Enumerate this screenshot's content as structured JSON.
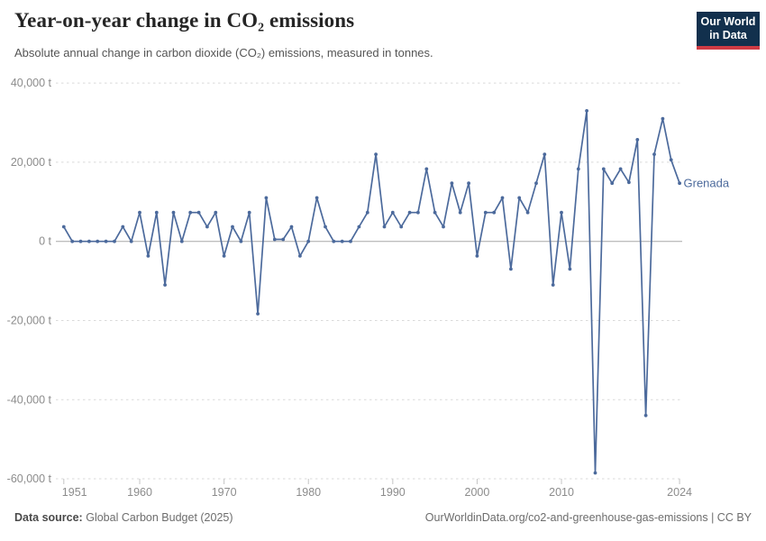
{
  "header": {
    "title": "Year-on-year change in CO₂ emissions",
    "subtitle": "Absolute annual change in carbon dioxide (CO₂) emissions, measured in tonnes.",
    "logo": {
      "line1": "Our World",
      "line2": "in Data"
    }
  },
  "chart_data": {
    "type": "line",
    "title": "Year-on-year change in CO₂ emissions",
    "subtitle": "Absolute annual change in carbon dioxide (CO₂) emissions, measured in tonnes.",
    "entity": "Grenada",
    "unit": "t",
    "grid": true,
    "legend_position": "end-of-line-label",
    "series_color": "#4c6a9c",
    "xlim": [
      1951,
      2024
    ],
    "ylim": [
      -60000,
      40000
    ],
    "x_ticks": [
      1951,
      1960,
      1970,
      1980,
      1990,
      2000,
      2010,
      2024
    ],
    "y_ticks": [
      {
        "value": 40000,
        "label": "40,000 t"
      },
      {
        "value": 20000,
        "label": "20,000 t"
      },
      {
        "value": 0,
        "label": "0 t"
      },
      {
        "value": -20000,
        "label": "-20,000 t"
      },
      {
        "value": -40000,
        "label": "-40,000 t"
      },
      {
        "value": -60000,
        "label": "-60,000 t"
      }
    ],
    "x": [
      1951,
      1952,
      1953,
      1954,
      1955,
      1956,
      1957,
      1958,
      1959,
      1960,
      1961,
      1962,
      1963,
      1964,
      1965,
      1966,
      1967,
      1968,
      1969,
      1970,
      1971,
      1972,
      1973,
      1974,
      1975,
      1976,
      1977,
      1978,
      1979,
      1980,
      1981,
      1982,
      1983,
      1984,
      1985,
      1986,
      1987,
      1988,
      1989,
      1990,
      1991,
      1992,
      1993,
      1994,
      1995,
      1996,
      1997,
      1998,
      1999,
      2000,
      2001,
      2002,
      2003,
      2004,
      2005,
      2006,
      2007,
      2008,
      2009,
      2010,
      2011,
      2012,
      2013,
      2014,
      2015,
      2016,
      2017,
      2018,
      2019,
      2020,
      2021,
      2022,
      2023,
      2024
    ],
    "values": [
      3700,
      0,
      0,
      0,
      0,
      0,
      0,
      3700,
      0,
      7300,
      -3700,
      7300,
      -11000,
      7300,
      0,
      7300,
      7300,
      3700,
      7300,
      -3700,
      3700,
      0,
      7300,
      -18300,
      11000,
      500,
      500,
      3700,
      -3700,
      0,
      11000,
      3700,
      0,
      0,
      0,
      3700,
      7300,
      22000,
      3700,
      7300,
      3700,
      7300,
      7300,
      18300,
      7300,
      3700,
      14700,
      7300,
      14700,
      -3700,
      7300,
      7300,
      11000,
      -7000,
      11000,
      7300,
      14700,
      22000,
      -11000,
      7300,
      -7000,
      18300,
      33000,
      -58500,
      18300,
      14700,
      18300,
      14900,
      25700,
      -44000,
      22000,
      31000,
      20600,
      14700
    ]
  },
  "footer": {
    "source_label": "Data source:",
    "source_value": "Global Carbon Budget (2025)",
    "attribution": "OurWorldinData.org/co2-and-greenhouse-gas-emissions | CC BY"
  }
}
